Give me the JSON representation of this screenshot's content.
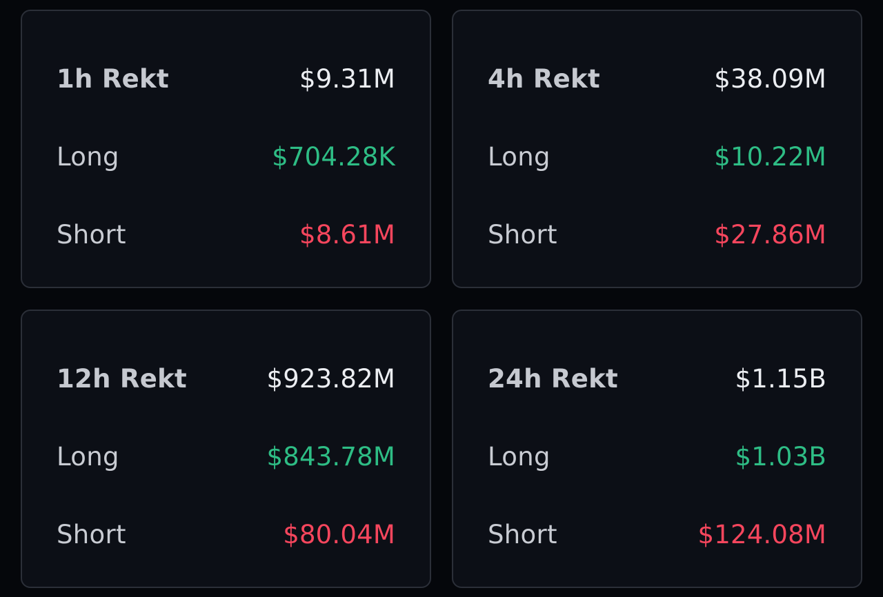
{
  "colors": {
    "background": "#05070b",
    "card_background": "#0c0f16",
    "card_border": "#2b2f38",
    "label": "#c9ccd3",
    "total": "#eceef2",
    "long": "#2ebd85",
    "short": "#f6465d"
  },
  "cards": [
    {
      "title": "1h Rekt",
      "total": "$9.31M",
      "long_label": "Long",
      "long": "$704.28K",
      "short_label": "Short",
      "short": "$8.61M"
    },
    {
      "title": "4h Rekt",
      "total": "$38.09M",
      "long_label": "Long",
      "long": "$10.22M",
      "short_label": "Short",
      "short": "$27.86M"
    },
    {
      "title": "12h Rekt",
      "total": "$923.82M",
      "long_label": "Long",
      "long": "$843.78M",
      "short_label": "Short",
      "short": "$80.04M"
    },
    {
      "title": "24h Rekt",
      "total": "$1.15B",
      "long_label": "Long",
      "long": "$1.03B",
      "short_label": "Short",
      "short": "$124.08M"
    }
  ]
}
